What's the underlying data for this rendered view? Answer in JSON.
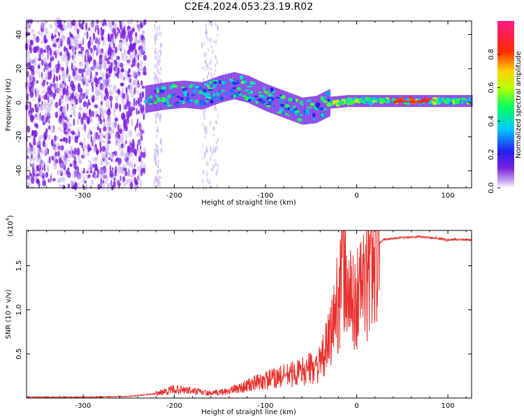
{
  "figure": {
    "title": "C2E4.2024.053.23.19.R02"
  },
  "colors": {
    "snr_line": "#e8302c",
    "speckle": "#7a1fe0",
    "axis": "#000000"
  },
  "chart_data": [
    {
      "type": "heatmap",
      "title": "C2E4.2024.053.23.19.R02",
      "xlabel": "Height of straight line (km)",
      "ylabel": "Frequency (Hz)",
      "xlim": [
        -362,
        126
      ],
      "ylim": [
        -50,
        48
      ],
      "xticks": [
        -300,
        -200,
        -100,
        0,
        100
      ],
      "yticks": [
        -40,
        -20,
        0,
        20,
        40
      ],
      "colorbar": {
        "label": "Normalized spectral amplitude",
        "range": [
          0,
          1
        ],
        "ticks": [
          "0.0",
          "0.2",
          "0.4",
          "0.6",
          "0.8"
        ],
        "colormap": "rainbow (violet → blue → cyan → green → yellow → red → pink)"
      },
      "regions": [
        {
          "x_range": [
            -362,
            -232
          ],
          "description": "broadband noise across full frequency range",
          "amplitude": 0.05
        },
        {
          "x_range": [
            -232,
            -150
          ],
          "frequency_center_hz": 2,
          "amplitude": 0.3
        },
        {
          "x_range": [
            -150,
            -30
          ],
          "frequency_center_hz": 0,
          "amplitude": 0.35
        },
        {
          "x_range": [
            -30,
            126
          ],
          "frequency_center_hz": 1,
          "amplitude": 0.6
        }
      ],
      "ridge": {
        "x": [
          -232,
          -210,
          -190,
          -170,
          -150,
          -135,
          -120,
          -100,
          -80,
          -60,
          -45,
          -30,
          -10,
          0,
          20,
          50,
          80,
          100,
          126
        ],
        "frequency_hz": [
          2,
          4,
          5,
          4,
          8,
          10,
          8,
          3,
          -1,
          -5,
          -4,
          0,
          1,
          1,
          1,
          1,
          1,
          1,
          1
        ]
      }
    },
    {
      "type": "line",
      "xlabel": "Height of straight line (km)",
      "ylabel": "SNR (10 * v/v)",
      "y_multiplier": "(x10",
      "y_multiplier_exp": "4",
      "y_multiplier_close": ")",
      "xlim": [
        -362,
        126
      ],
      "ylim": [
        0,
        1.9
      ],
      "xticks": [
        -300,
        -200,
        -100,
        0,
        100
      ],
      "yticks": [
        0.5,
        1.0,
        1.5
      ],
      "series": [
        {
          "x": [
            -362,
            -300,
            -250,
            -220,
            -200,
            -180,
            -160,
            -140,
            -120,
            -100,
            -80,
            -60,
            -40,
            -30,
            -25,
            -20,
            -15,
            -10,
            -5,
            0,
            5,
            10,
            15,
            20,
            30,
            50,
            70,
            90,
            100,
            110,
            126
          ],
          "y": [
            0.01,
            0.01,
            0.02,
            0.05,
            0.1,
            0.08,
            0.05,
            0.08,
            0.14,
            0.2,
            0.25,
            0.3,
            0.38,
            0.65,
            0.9,
            1.15,
            1.5,
            1.25,
            1.05,
            1.1,
            1.3,
            1.25,
            1.55,
            1.72,
            1.8,
            1.82,
            1.83,
            1.81,
            1.79,
            1.8,
            1.79
          ]
        }
      ]
    }
  ]
}
